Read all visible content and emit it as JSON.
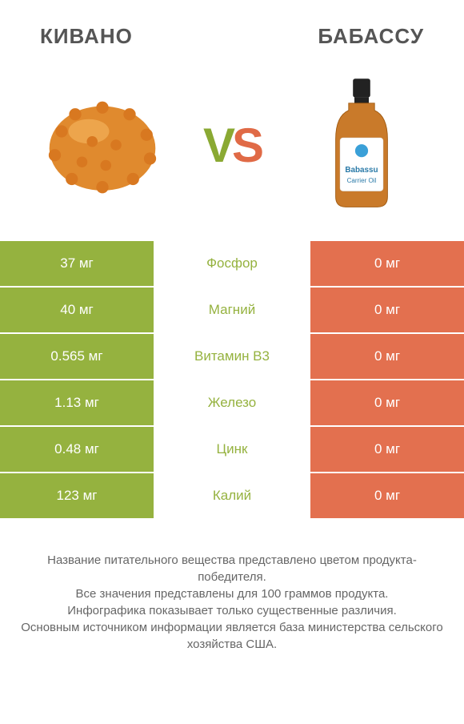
{
  "header": {
    "left": "Кивано",
    "right": "Бабассу"
  },
  "vs": {
    "v": "V",
    "s": "S"
  },
  "colors": {
    "left_bg": "#95b23f",
    "right_bg": "#e3704f",
    "mid_bg_winner_left": "#95b23f",
    "mid_bg_winner_right": "#e3704f",
    "text": "#ffffff"
  },
  "table": {
    "rows": [
      {
        "left": "37 мг",
        "name": "Фосфор",
        "right": "0 мг",
        "winner": "left"
      },
      {
        "left": "40 мг",
        "name": "Магний",
        "right": "0 мг",
        "winner": "left"
      },
      {
        "left": "0.565 мг",
        "name": "Витамин B3",
        "right": "0 мг",
        "winner": "left"
      },
      {
        "left": "1.13 мг",
        "name": "Железо",
        "right": "0 мг",
        "winner": "left"
      },
      {
        "left": "0.48 мг",
        "name": "Цинк",
        "right": "0 мг",
        "winner": "left"
      },
      {
        "left": "123 мг",
        "name": "Калий",
        "right": "0 мг",
        "winner": "left"
      }
    ]
  },
  "footer": {
    "line1": "Название питательного вещества представлено цветом продукта-победителя.",
    "line2": "Все значения представлены для 100 граммов продукта.",
    "line3": "Инфографика показывает только существенные различия.",
    "line4": "Основным источником информации является база министерства сельского хозяйства США."
  },
  "bottle_label": {
    "brand": "Babassu",
    "sub": "Carrier Oil"
  }
}
